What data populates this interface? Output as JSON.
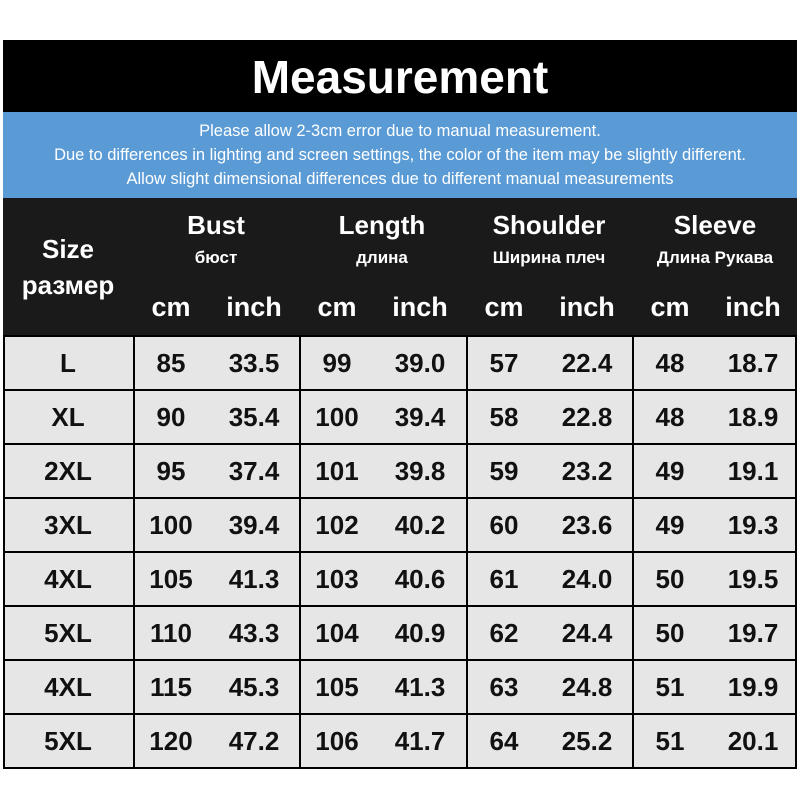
{
  "title": "Measurement",
  "notes": [
    "Please allow 2-3cm error due to manual measurement.",
    "Due to differences in lighting and screen settings, the color of the item may be slightly different.",
    "Allow slight dimensional differences due to different manual measurements"
  ],
  "header": {
    "size": "Size",
    "size_ru": "размер",
    "groups": [
      {
        "en": "Bust",
        "ru": "бюст"
      },
      {
        "en": "Length",
        "ru": "длина"
      },
      {
        "en": "Shoulder",
        "ru": "Ширина плеч"
      },
      {
        "en": "Sleeve",
        "ru": "Длина Рукава"
      }
    ],
    "cm": "cm",
    "inch": "inch"
  },
  "rows": [
    [
      "L",
      "85",
      "33.5",
      "99",
      "39.0",
      "57",
      "22.4",
      "48",
      "18.7"
    ],
    [
      "XL",
      "90",
      "35.4",
      "100",
      "39.4",
      "58",
      "22.8",
      "48",
      "18.9"
    ],
    [
      "2XL",
      "95",
      "37.4",
      "101",
      "39.8",
      "59",
      "23.2",
      "49",
      "19.1"
    ],
    [
      "3XL",
      "100",
      "39.4",
      "102",
      "40.2",
      "60",
      "23.6",
      "49",
      "19.3"
    ],
    [
      "4XL",
      "105",
      "41.3",
      "103",
      "40.6",
      "61",
      "24.0",
      "50",
      "19.5"
    ],
    [
      "5XL",
      "110",
      "43.3",
      "104",
      "40.9",
      "62",
      "24.4",
      "50",
      "19.7"
    ],
    [
      "4XL",
      "115",
      "45.3",
      "105",
      "41.3",
      "63",
      "24.8",
      "51",
      "19.9"
    ],
    [
      "5XL",
      "120",
      "47.2",
      "106",
      "41.7",
      "64",
      "25.2",
      "51",
      "20.1"
    ]
  ]
}
